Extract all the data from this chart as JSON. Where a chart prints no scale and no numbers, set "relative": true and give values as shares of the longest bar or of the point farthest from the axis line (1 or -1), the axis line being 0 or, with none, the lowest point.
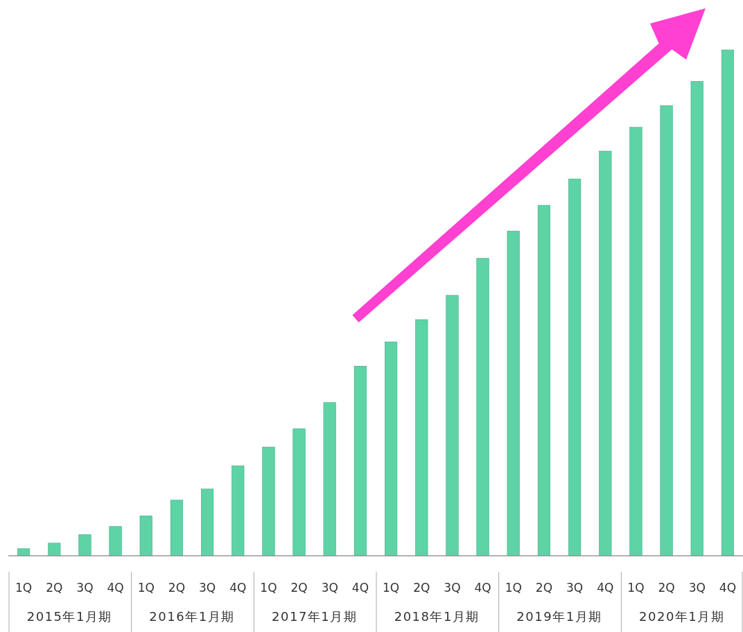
{
  "chart_data": {
    "type": "bar",
    "relative": true,
    "categories": [
      "1Q",
      "2Q",
      "3Q",
      "4Q",
      "1Q",
      "2Q",
      "3Q",
      "4Q",
      "1Q",
      "2Q",
      "3Q",
      "4Q",
      "1Q",
      "2Q",
      "3Q",
      "4Q",
      "1Q",
      "2Q",
      "3Q",
      "4Q",
      "1Q",
      "2Q",
      "3Q",
      "4Q"
    ],
    "values": [
      0.014,
      0.025,
      0.042,
      0.058,
      0.079,
      0.11,
      0.132,
      0.178,
      0.215,
      0.251,
      0.303,
      0.375,
      0.423,
      0.467,
      0.515,
      0.588,
      0.642,
      0.693,
      0.745,
      0.8,
      0.847,
      0.89,
      0.938,
      1
    ],
    "color": "#5dd3a6",
    "annotations": [
      "2015年1月期",
      "2016年1月期",
      "2017年1月期",
      "2018年1月期",
      "2019年1月期",
      "2020年1月期"
    ]
  }
}
